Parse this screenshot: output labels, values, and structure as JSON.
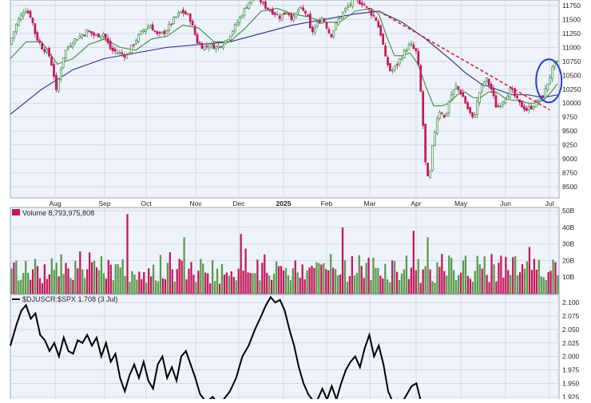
{
  "panels": {
    "volume_label": "Volume 8,793,975,808",
    "ratio_label": "$DJUSCR:$SPX 1.708 (3 Jul)"
  },
  "colors": {
    "up": "#3c8c3c",
    "down": "#c2185b",
    "volume_up": "#5a9a4a",
    "volume_down": "#c2185b",
    "ma_short": "#3c8c3c",
    "ma_long": "#2b2b8c",
    "trendline": "#dd2222",
    "highlight": "#1f3fd0",
    "ratio_line": "#000000",
    "panel_bg": "#eef2fa",
    "grid": "#c9d2e0"
  },
  "chart_data": [
    {
      "type": "candlestick",
      "name": "price",
      "x_labels": [
        "Aug",
        "Sep",
        "Oct",
        "Nov",
        "Dec",
        "2025",
        "Feb",
        "Mar",
        "Apr",
        "May",
        "Jun",
        "Jul"
      ],
      "y_ticks": [
        8500,
        8750,
        9000,
        9250,
        9500,
        9750,
        10000,
        10250,
        10500,
        10750,
        11000,
        11250,
        11500,
        11750
      ],
      "ylim": [
        8300,
        11850
      ],
      "close_path": [
        [
          0,
          11050
        ],
        [
          10,
          11450
        ],
        [
          20,
          11700
        ],
        [
          28,
          11550
        ],
        [
          34,
          11200
        ],
        [
          42,
          11000
        ],
        [
          50,
          10900
        ],
        [
          56,
          10600
        ],
        [
          60,
          10200
        ],
        [
          64,
          10500
        ],
        [
          70,
          10900
        ],
        [
          80,
          11100
        ],
        [
          90,
          11200
        ],
        [
          100,
          11300
        ],
        [
          110,
          11200
        ],
        [
          120,
          11250
        ],
        [
          130,
          10950
        ],
        [
          140,
          10900
        ],
        [
          150,
          10850
        ],
        [
          160,
          11100
        ],
        [
          170,
          11300
        ],
        [
          180,
          11400
        ],
        [
          190,
          11200
        ],
        [
          200,
          11300
        ],
        [
          210,
          11500
        ],
        [
          220,
          11650
        ],
        [
          230,
          11550
        ],
        [
          240,
          11100
        ],
        [
          248,
          11000
        ],
        [
          255,
          11050
        ],
        [
          265,
          11000
        ],
        [
          275,
          11100
        ],
        [
          285,
          11300
        ],
        [
          295,
          11550
        ],
        [
          305,
          11800
        ],
        [
          315,
          11950
        ],
        [
          325,
          11750
        ],
        [
          335,
          11650
        ],
        [
          345,
          11550
        ],
        [
          355,
          11650
        ],
        [
          362,
          11500
        ],
        [
          370,
          11700
        ],
        [
          380,
          11600
        ],
        [
          385,
          11250
        ],
        [
          392,
          11400
        ],
        [
          400,
          11550
        ],
        [
          410,
          11200
        ],
        [
          420,
          11500
        ],
        [
          430,
          11700
        ],
        [
          440,
          11850
        ],
        [
          450,
          11800
        ],
        [
          460,
          11650
        ],
        [
          468,
          11500
        ],
        [
          475,
          11200
        ],
        [
          480,
          10800
        ],
        [
          487,
          10550
        ],
        [
          495,
          10700
        ],
        [
          505,
          10950
        ],
        [
          512,
          11050
        ],
        [
          520,
          10900
        ],
        [
          524,
          10400
        ],
        [
          528,
          9600
        ],
        [
          532,
          8700
        ],
        [
          536,
          8600
        ],
        [
          540,
          9200
        ],
        [
          545,
          9700
        ],
        [
          550,
          9900
        ],
        [
          556,
          9700
        ],
        [
          562,
          10100
        ],
        [
          570,
          10300
        ],
        [
          578,
          10150
        ],
        [
          585,
          9900
        ],
        [
          592,
          9700
        ],
        [
          600,
          10200
        ],
        [
          608,
          10450
        ],
        [
          615,
          10250
        ],
        [
          622,
          9900
        ],
        [
          630,
          10050
        ],
        [
          640,
          10250
        ],
        [
          650,
          10000
        ],
        [
          660,
          9880
        ],
        [
          668,
          9950
        ],
        [
          675,
          10050
        ],
        [
          682,
          10150
        ],
        [
          688,
          10400
        ],
        [
          694,
          10650
        ],
        [
          698,
          10720
        ]
      ],
      "ma_short_path": [
        [
          0,
          10800
        ],
        [
          20,
          11100
        ],
        [
          40,
          11100
        ],
        [
          60,
          10700
        ],
        [
          80,
          10800
        ],
        [
          100,
          11050
        ],
        [
          120,
          11150
        ],
        [
          140,
          11000
        ],
        [
          160,
          10950
        ],
        [
          180,
          11150
        ],
        [
          200,
          11200
        ],
        [
          220,
          11400
        ],
        [
          240,
          11350
        ],
        [
          260,
          11100
        ],
        [
          280,
          11100
        ],
        [
          300,
          11350
        ],
        [
          320,
          11650
        ],
        [
          340,
          11700
        ],
        [
          360,
          11600
        ],
        [
          380,
          11550
        ],
        [
          400,
          11450
        ],
        [
          420,
          11450
        ],
        [
          440,
          11650
        ],
        [
          460,
          11700
        ],
        [
          470,
          11600
        ],
        [
          480,
          11200
        ],
        [
          490,
          10850
        ],
        [
          500,
          10850
        ],
        [
          510,
          10900
        ],
        [
          520,
          10700
        ],
        [
          530,
          10300
        ],
        [
          540,
          9950
        ],
        [
          550,
          9950
        ],
        [
          560,
          10000
        ],
        [
          570,
          10150
        ],
        [
          580,
          10200
        ],
        [
          590,
          10100
        ],
        [
          600,
          10100
        ],
        [
          610,
          10200
        ],
        [
          620,
          10200
        ],
        [
          630,
          10100
        ],
        [
          640,
          10050
        ],
        [
          650,
          10050
        ],
        [
          660,
          10000
        ],
        [
          670,
          10000
        ],
        [
          680,
          10050
        ],
        [
          690,
          10200
        ],
        [
          698,
          10350
        ]
      ],
      "ma_long_path": [
        [
          0,
          9800
        ],
        [
          40,
          10250
        ],
        [
          80,
          10600
        ],
        [
          120,
          10800
        ],
        [
          160,
          10900
        ],
        [
          200,
          11000
        ],
        [
          240,
          11050
        ],
        [
          280,
          11100
        ],
        [
          320,
          11250
        ],
        [
          360,
          11400
        ],
        [
          400,
          11500
        ],
        [
          440,
          11600
        ],
        [
          470,
          11650
        ],
        [
          500,
          11450
        ],
        [
          530,
          11150
        ],
        [
          560,
          10800
        ],
        [
          580,
          10550
        ],
        [
          600,
          10350
        ],
        [
          620,
          10250
        ],
        [
          640,
          10150
        ],
        [
          660,
          10150
        ],
        [
          680,
          10100
        ],
        [
          698,
          10150
        ]
      ],
      "trendline": [
        [
          470,
          11650
        ],
        [
          688,
          9880
        ]
      ],
      "highlight_ellipse": {
        "center": [
          687,
          10400
        ],
        "note": "recent breakout circled"
      }
    },
    {
      "type": "bar",
      "name": "Volume",
      "y_ticks": [
        "10B",
        "20B",
        "30B",
        "40B",
        "50B"
      ],
      "y_tick_values": [
        10,
        20,
        30,
        40,
        50
      ],
      "ylim": [
        0,
        52
      ],
      "unit": "billions",
      "typical_range": [
        6,
        24
      ],
      "notable_spikes": [
        {
          "x_index": 148,
          "value": 48
        },
        {
          "x_index": 219,
          "value": 34
        },
        {
          "x_index": 294,
          "value": 36
        },
        {
          "x_index": 423,
          "value": 40
        },
        {
          "x_index": 512,
          "value": 38
        },
        {
          "x_index": 530,
          "value": 34
        }
      ],
      "bar_count": 232,
      "seed": 7
    },
    {
      "type": "line",
      "name": "$DJUSCR:$SPX",
      "y_ticks": [
        1.925,
        1.95,
        1.975,
        2.0,
        2.025,
        2.05,
        2.075,
        2.1
      ],
      "ylim": [
        1.915,
        2.115
      ],
      "path": [
        [
          0,
          2.02
        ],
        [
          8,
          2.06
        ],
        [
          14,
          2.085
        ],
        [
          20,
          2.095
        ],
        [
          26,
          2.07
        ],
        [
          32,
          2.08
        ],
        [
          38,
          2.04
        ],
        [
          44,
          2.03
        ],
        [
          50,
          2.01
        ],
        [
          56,
          2.025
        ],
        [
          62,
          2.0
        ],
        [
          68,
          2.035
        ],
        [
          74,
          2.01
        ],
        [
          80,
          2.005
        ],
        [
          86,
          2.03
        ],
        [
          92,
          2.025
        ],
        [
          98,
          2.04
        ],
        [
          104,
          2.02
        ],
        [
          110,
          2.035
        ],
        [
          116,
          2.0
        ],
        [
          122,
          2.025
        ],
        [
          128,
          1.99
        ],
        [
          134,
          2.005
        ],
        [
          140,
          1.96
        ],
        [
          146,
          1.935
        ],
        [
          152,
          1.965
        ],
        [
          158,
          1.985
        ],
        [
          164,
          1.96
        ],
        [
          170,
          1.99
        ],
        [
          176,
          1.955
        ],
        [
          182,
          1.94
        ],
        [
          188,
          1.985
        ],
        [
          194,
          2.0
        ],
        [
          200,
          1.96
        ],
        [
          206,
          1.98
        ],
        [
          212,
          1.955
        ],
        [
          218,
          2.0
        ],
        [
          224,
          2.01
        ],
        [
          230,
          1.985
        ],
        [
          236,
          1.96
        ],
        [
          242,
          1.93
        ],
        [
          250,
          1.915
        ],
        [
          258,
          1.925
        ],
        [
          264,
          1.915
        ],
        [
          272,
          1.92
        ],
        [
          280,
          1.935
        ],
        [
          288,
          1.96
        ],
        [
          296,
          2.0
        ],
        [
          304,
          2.02
        ],
        [
          312,
          2.05
        ],
        [
          320,
          2.075
        ],
        [
          326,
          2.095
        ],
        [
          332,
          2.11
        ],
        [
          338,
          2.1
        ],
        [
          344,
          2.105
        ],
        [
          350,
          2.085
        ],
        [
          356,
          2.05
        ],
        [
          362,
          2.02
        ],
        [
          368,
          1.98
        ],
        [
          374,
          1.95
        ],
        [
          380,
          1.93
        ],
        [
          386,
          1.918
        ],
        [
          392,
          1.92
        ],
        [
          398,
          1.94
        ],
        [
          404,
          1.92
        ],
        [
          410,
          1.945
        ],
        [
          416,
          1.92
        ],
        [
          422,
          1.95
        ],
        [
          428,
          1.975
        ],
        [
          434,
          1.99
        ],
        [
          440,
          2.0
        ],
        [
          446,
          1.98
        ],
        [
          452,
          2.015
        ],
        [
          458,
          2.04
        ],
        [
          464,
          2.0
        ],
        [
          470,
          2.02
        ],
        [
          476,
          1.985
        ],
        [
          482,
          1.935
        ],
        [
          488,
          1.915
        ],
        [
          494,
          1.92
        ],
        [
          500,
          1.915
        ],
        [
          506,
          1.93
        ],
        [
          512,
          1.945
        ],
        [
          518,
          1.95
        ],
        [
          524,
          1.915
        ]
      ]
    }
  ]
}
